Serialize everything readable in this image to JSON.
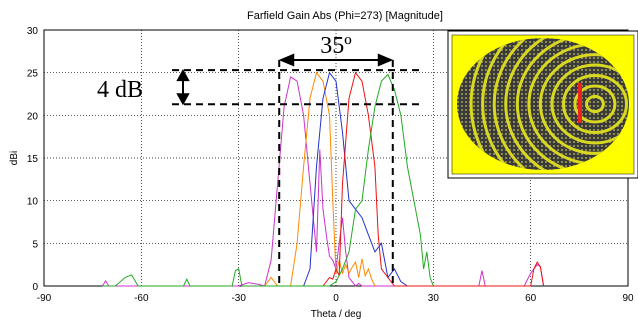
{
  "chart_data": {
    "type": "line",
    "title": "Farfield Gain Abs (Phi=273) [Magnitude]",
    "xlabel": "Theta / deg",
    "ylabel": "dBi",
    "xlim": [
      -90,
      90
    ],
    "ylim": [
      0,
      30
    ],
    "xticks": [
      -90,
      -60,
      -30,
      0,
      30,
      60,
      90
    ],
    "yticks": [
      0,
      5,
      10,
      15,
      20,
      25,
      30
    ],
    "grid": true,
    "legend": "none",
    "series": [
      {
        "color": "#cc33cc",
        "x": [
          -72,
          -71,
          -70,
          -30,
          -27,
          -24,
          -22,
          -20,
          -18,
          -16,
          -14,
          -12,
          -10,
          -8,
          -6,
          -5,
          -4,
          -3,
          -2,
          -1,
          0,
          1,
          2,
          3,
          4,
          5,
          6,
          7,
          8,
          15,
          20,
          44,
          45,
          46,
          58,
          60,
          62,
          63,
          64
        ],
        "y": [
          0,
          0.6,
          0,
          0,
          0.4,
          0.2,
          0,
          3,
          12,
          21,
          24.5,
          24,
          20,
          12,
          4,
          16,
          9,
          6,
          3.5,
          3,
          2,
          5,
          8,
          4,
          1,
          0.5,
          0,
          0.3,
          0,
          0,
          0,
          0,
          1.8,
          0,
          0,
          1.5,
          2.5,
          2.3,
          0
        ]
      },
      {
        "color": "#ff8800",
        "x": [
          -22,
          -20,
          -18,
          -14,
          -12,
          -10,
          -8,
          -6,
          -4,
          -2,
          -1,
          0,
          1,
          2,
          3,
          4,
          5,
          6,
          7,
          8,
          9,
          10,
          11,
          12
        ],
        "y": [
          0,
          1,
          0,
          0,
          5,
          14,
          22,
          25,
          24,
          20,
          10,
          1.5,
          3,
          1.5,
          2.5,
          1.5,
          2.2,
          2.8,
          1,
          3.2,
          1.2,
          2,
          0.8,
          0
        ]
      },
      {
        "color": "#2233cc",
        "x": [
          -10,
          -8,
          -6,
          -4,
          -2,
          0,
          2,
          4,
          6,
          8,
          10,
          12,
          14,
          16,
          18,
          20,
          22
        ],
        "y": [
          0,
          2,
          14,
          22,
          25,
          24,
          18,
          10,
          9,
          8,
          6,
          4,
          5,
          1,
          2,
          0.5,
          0
        ]
      },
      {
        "color": "#ee1111",
        "x": [
          -4,
          -2,
          -1,
          0,
          1,
          2,
          4,
          6,
          8,
          10,
          12,
          13,
          14,
          16,
          18,
          60,
          61,
          62,
          63,
          64
        ],
        "y": [
          0,
          1,
          0.8,
          2,
          1.2,
          12,
          22,
          25,
          24,
          20,
          14,
          6,
          2,
          1,
          0,
          0,
          2,
          2.8,
          2.2,
          0
        ]
      },
      {
        "color": "#22aa22",
        "x": [
          -72,
          -68,
          -65,
          -63,
          -61,
          -47,
          -46,
          -45,
          -32,
          -31,
          -30,
          -29,
          -4,
          -2,
          0,
          2,
          4,
          6,
          8,
          10,
          12,
          14,
          16,
          18,
          20,
          22,
          24,
          26,
          27,
          28,
          29,
          30
        ],
        "y": [
          0,
          0,
          1,
          1.3,
          0,
          0,
          0.8,
          0,
          0,
          1.8,
          2,
          0,
          0,
          0,
          0.5,
          2,
          4,
          9,
          10,
          16,
          21,
          24,
          24.8,
          23,
          20,
          14,
          10,
          6,
          2,
          4,
          1,
          0
        ]
      }
    ],
    "annotations": {
      "width_label": "35º",
      "height_label": "4 dB",
      "width_range_theta": [
        -17.5,
        17.5
      ],
      "height_range_dbi": [
        21.3,
        25.3
      ]
    }
  }
}
